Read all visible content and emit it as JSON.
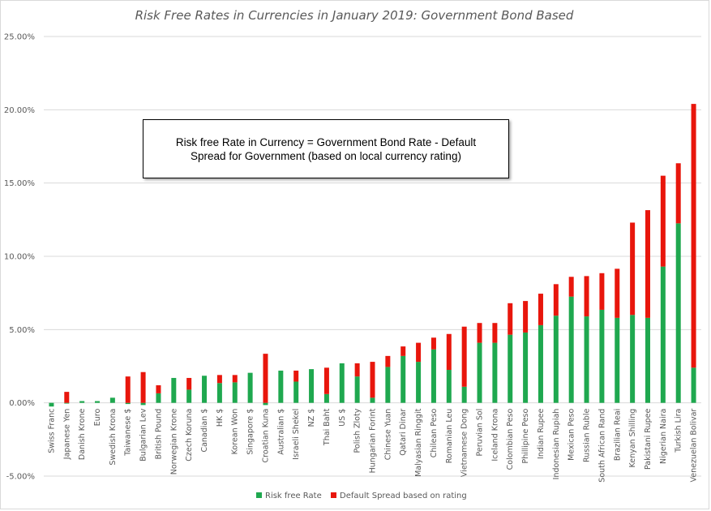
{
  "chart_data": {
    "type": "bar",
    "stacked": true,
    "title": "Risk Free Rates in Currencies in January 2019: Government Bond Based",
    "xlabel": "",
    "ylabel": "",
    "ylim": [
      -0.05,
      0.25
    ],
    "yticks": [
      -0.05,
      0.0,
      0.05,
      0.1,
      0.15,
      0.2,
      0.25
    ],
    "ytick_labels": [
      "-5.00%",
      "0.00%",
      "5.00%",
      "10.00%",
      "15.00%",
      "20.00%",
      "25.00%"
    ],
    "grid": true,
    "legend_position": "bottom",
    "annotation": "Risk free Rate in Currency = Government Bond Rate - Default Spread for Government (based on local currency rating)",
    "categories": [
      "Swiss Franc",
      "Japanese Yen",
      "Danish Krone",
      "Euro",
      "Swedish Krona",
      "Taiwanese $",
      "Bulgarian Lev",
      "British Pound",
      "Norwegian Krone",
      "Czech Koruna",
      "Canadian $",
      "HK $",
      "Korean Won",
      "Singapore $",
      "Croatian Kuna",
      "Australian $",
      "Israeli Shekel",
      "NZ $",
      "Thai Baht",
      "US $",
      "Polish Zloty",
      "Hungarian Forint",
      "Chinese Yuan",
      "Qatari Dinar",
      "Malyasian Ringgit",
      "Chilean Peso",
      "Romanian Leu",
      "Vietnamese Dong",
      "Peruvian Sol",
      "Iceland Krona",
      "Colombian Peso",
      "Phillipine Peso",
      "Indian Rupee",
      "Indonesian Rupiah",
      "Mexican Peso",
      "Russian Ruble",
      "South African Rand",
      "Brazilian Reai",
      "Kenyan Shilling",
      "Pakistani Rupee",
      "Nigerian Naira",
      "Turkish Lira",
      "Venezuelan Bolivar"
    ],
    "series": [
      {
        "name": "Risk free Rate",
        "color": "#1fa84f",
        "values": [
          -0.0025,
          -0.0005,
          0.0012,
          0.0012,
          0.0035,
          -0.0008,
          -0.0015,
          0.0065,
          0.017,
          0.009,
          0.0185,
          0.0135,
          0.014,
          0.0205,
          -0.0015,
          0.022,
          0.0145,
          0.023,
          0.006,
          0.027,
          0.018,
          0.0035,
          0.0245,
          0.032,
          0.028,
          0.0365,
          0.0225,
          0.011,
          0.041,
          0.041,
          0.0465,
          0.048,
          0.053,
          0.0595,
          0.0725,
          0.059,
          0.0635,
          0.058,
          0.06,
          0.058,
          0.093,
          0.1225,
          0.024
        ]
      },
      {
        "name": "Default Spread based on rating",
        "color": "#e8160c",
        "values": [
          0,
          0.0075,
          0,
          0,
          0,
          0.018,
          0.021,
          0.0055,
          0,
          0.008,
          0,
          0.0055,
          0.005,
          0,
          0.0335,
          0,
          0.0075,
          0,
          0.018,
          0,
          0.009,
          0.0245,
          0.0075,
          0.0065,
          0.013,
          0.008,
          0.0245,
          0.041,
          0.0135,
          0.0135,
          0.0215,
          0.0215,
          0.0215,
          0.0215,
          0.0135,
          0.0275,
          0.025,
          0.0335,
          0.063,
          0.0735,
          0.062,
          0.041,
          0.18
        ]
      }
    ]
  }
}
